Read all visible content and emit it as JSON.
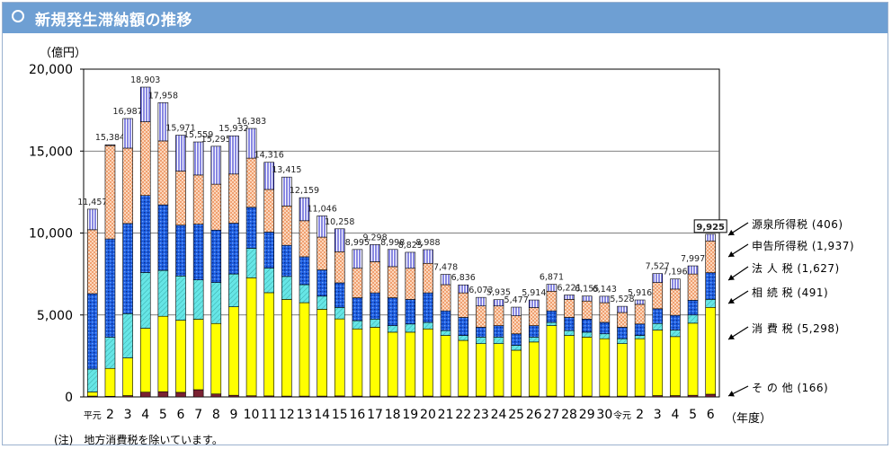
{
  "header": {
    "title": "新規発生滞納額の推移"
  },
  "note": {
    "prefix": "(注)",
    "text": "地方消費税を除いています。"
  },
  "chart_data": {
    "type": "bar",
    "stacked": true,
    "unit_label": "（億円）",
    "x_unit_label": "（年度）",
    "ylim": [
      0,
      20000
    ],
    "yticks": [
      0,
      5000,
      10000,
      15000,
      20000
    ],
    "ytick_labels": [
      "0",
      "5,000",
      "10,000",
      "15,000",
      "20,000"
    ],
    "grid": true,
    "categories": [
      "平元",
      "2",
      "3",
      "4",
      "5",
      "6",
      "7",
      "8",
      "9",
      "10",
      "11",
      "12",
      "13",
      "14",
      "15",
      "16",
      "17",
      "18",
      "19",
      "20",
      "21",
      "22",
      "23",
      "24",
      "25",
      "26",
      "27",
      "28",
      "29",
      "30",
      "令元",
      "2",
      "3",
      "4",
      "5",
      "6"
    ],
    "totals": [
      11457,
      15384,
      16987,
      18903,
      17958,
      15971,
      15559,
      15295,
      15932,
      16383,
      14316,
      13415,
      12159,
      11046,
      10258,
      8995,
      9298,
      8998,
      8825,
      8988,
      7478,
      6836,
      6073,
      5935,
      5477,
      5914,
      6871,
      6221,
      6155,
      6143,
      5528,
      5916,
      7527,
      7196,
      7997,
      9925
    ],
    "total_labels": [
      "11,457",
      "15,384",
      "16,987",
      "18,903",
      "17,958",
      "15,971",
      "15,559",
      "15,295",
      "15,932",
      "16,383",
      "14,316",
      "13,415",
      "12,159",
      "11,046",
      "10,258",
      "8,995",
      "9,298",
      "8,998",
      "8,825",
      "8,988",
      "7,478",
      "6,836",
      "6,073",
      "5,935",
      "5,477",
      "5,914",
      "6,871",
      "6,221",
      "6,155",
      "6,143",
      "5,528",
      "5,916",
      "7,527",
      "7,196",
      "7,997",
      "9,925"
    ],
    "highlight_last": true,
    "series": [
      {
        "name": "その他",
        "legend_label": "そ の 他 (166)",
        "color": "#7a2232",
        "pattern": "solid",
        "values": [
          50,
          40,
          80,
          290,
          320,
          280,
          440,
          180,
          100,
          70,
          60,
          50,
          50,
          50,
          60,
          50,
          50,
          50,
          50,
          50,
          50,
          50,
          50,
          50,
          50,
          50,
          50,
          50,
          50,
          50,
          50,
          50,
          80,
          80,
          100,
          166
        ]
      },
      {
        "name": "消費税",
        "legend_label": "消 費 税 (5,298)",
        "color": "#ffff00",
        "pattern": "solid",
        "values": [
          250,
          1700,
          2300,
          3900,
          4600,
          4400,
          4300,
          4300,
          5400,
          7200,
          6300,
          5900,
          5700,
          5300,
          4700,
          4100,
          4200,
          3900,
          3900,
          4100,
          3700,
          3400,
          3200,
          3200,
          2800,
          3300,
          4300,
          3700,
          3600,
          3500,
          3200,
          3500,
          4000,
          3600,
          4400,
          5298
        ]
      },
      {
        "name": "相続税",
        "legend_label": "相 続 税 (491)",
        "color": "#66e6e6",
        "pattern": "hatch",
        "values": [
          1400,
          1900,
          2700,
          3400,
          2800,
          2700,
          2400,
          2500,
          2000,
          1800,
          1500,
          1400,
          1100,
          800,
          700,
          500,
          500,
          400,
          500,
          400,
          300,
          300,
          400,
          400,
          300,
          300,
          200,
          300,
          300,
          300,
          300,
          200,
          400,
          400,
          500,
          491
        ]
      },
      {
        "name": "法人税",
        "legend_label": "法 人 税 (1,627)",
        "color": "#1e5fe0",
        "pattern": "dots",
        "values": [
          4600,
          6000,
          5500,
          4700,
          4000,
          3100,
          3400,
          3200,
          3100,
          2500,
          2200,
          1900,
          1700,
          1600,
          1500,
          1400,
          1600,
          1700,
          1500,
          1800,
          1200,
          1100,
          600,
          700,
          700,
          700,
          700,
          800,
          800,
          700,
          700,
          700,
          900,
          900,
          900,
          1627
        ]
      },
      {
        "name": "申告所得税",
        "legend_label": "申告所得税 (1,937)",
        "color": "#f0a070",
        "pattern": "checker",
        "values": [
          3900,
          5700,
          4600,
          4500,
          3900,
          3300,
          3000,
          2800,
          3000,
          3000,
          2600,
          2400,
          2200,
          2000,
          1900,
          1800,
          1900,
          1900,
          1900,
          1800,
          1600,
          1500,
          1300,
          1200,
          1100,
          1100,
          1200,
          1100,
          1100,
          1200,
          900,
          1200,
          1600,
          1600,
          1600,
          1937
        ]
      },
      {
        "name": "源泉所得税",
        "legend_label": "源泉所得税 (406)",
        "color": "#3a3ad0",
        "pattern": "vlines",
        "values": [
          1257,
          44,
          1807,
          2113,
          2338,
          2191,
          2019,
          2315,
          2332,
          1813,
          1656,
          1765,
          1409,
          1296,
          1398,
          1145,
          1048,
          1048,
          975,
          838,
          628,
          486,
          523,
          385,
          527,
          464,
          421,
          271,
          305,
          393,
          378,
          266,
          547,
          616,
          497,
          406
        ]
      }
    ]
  }
}
